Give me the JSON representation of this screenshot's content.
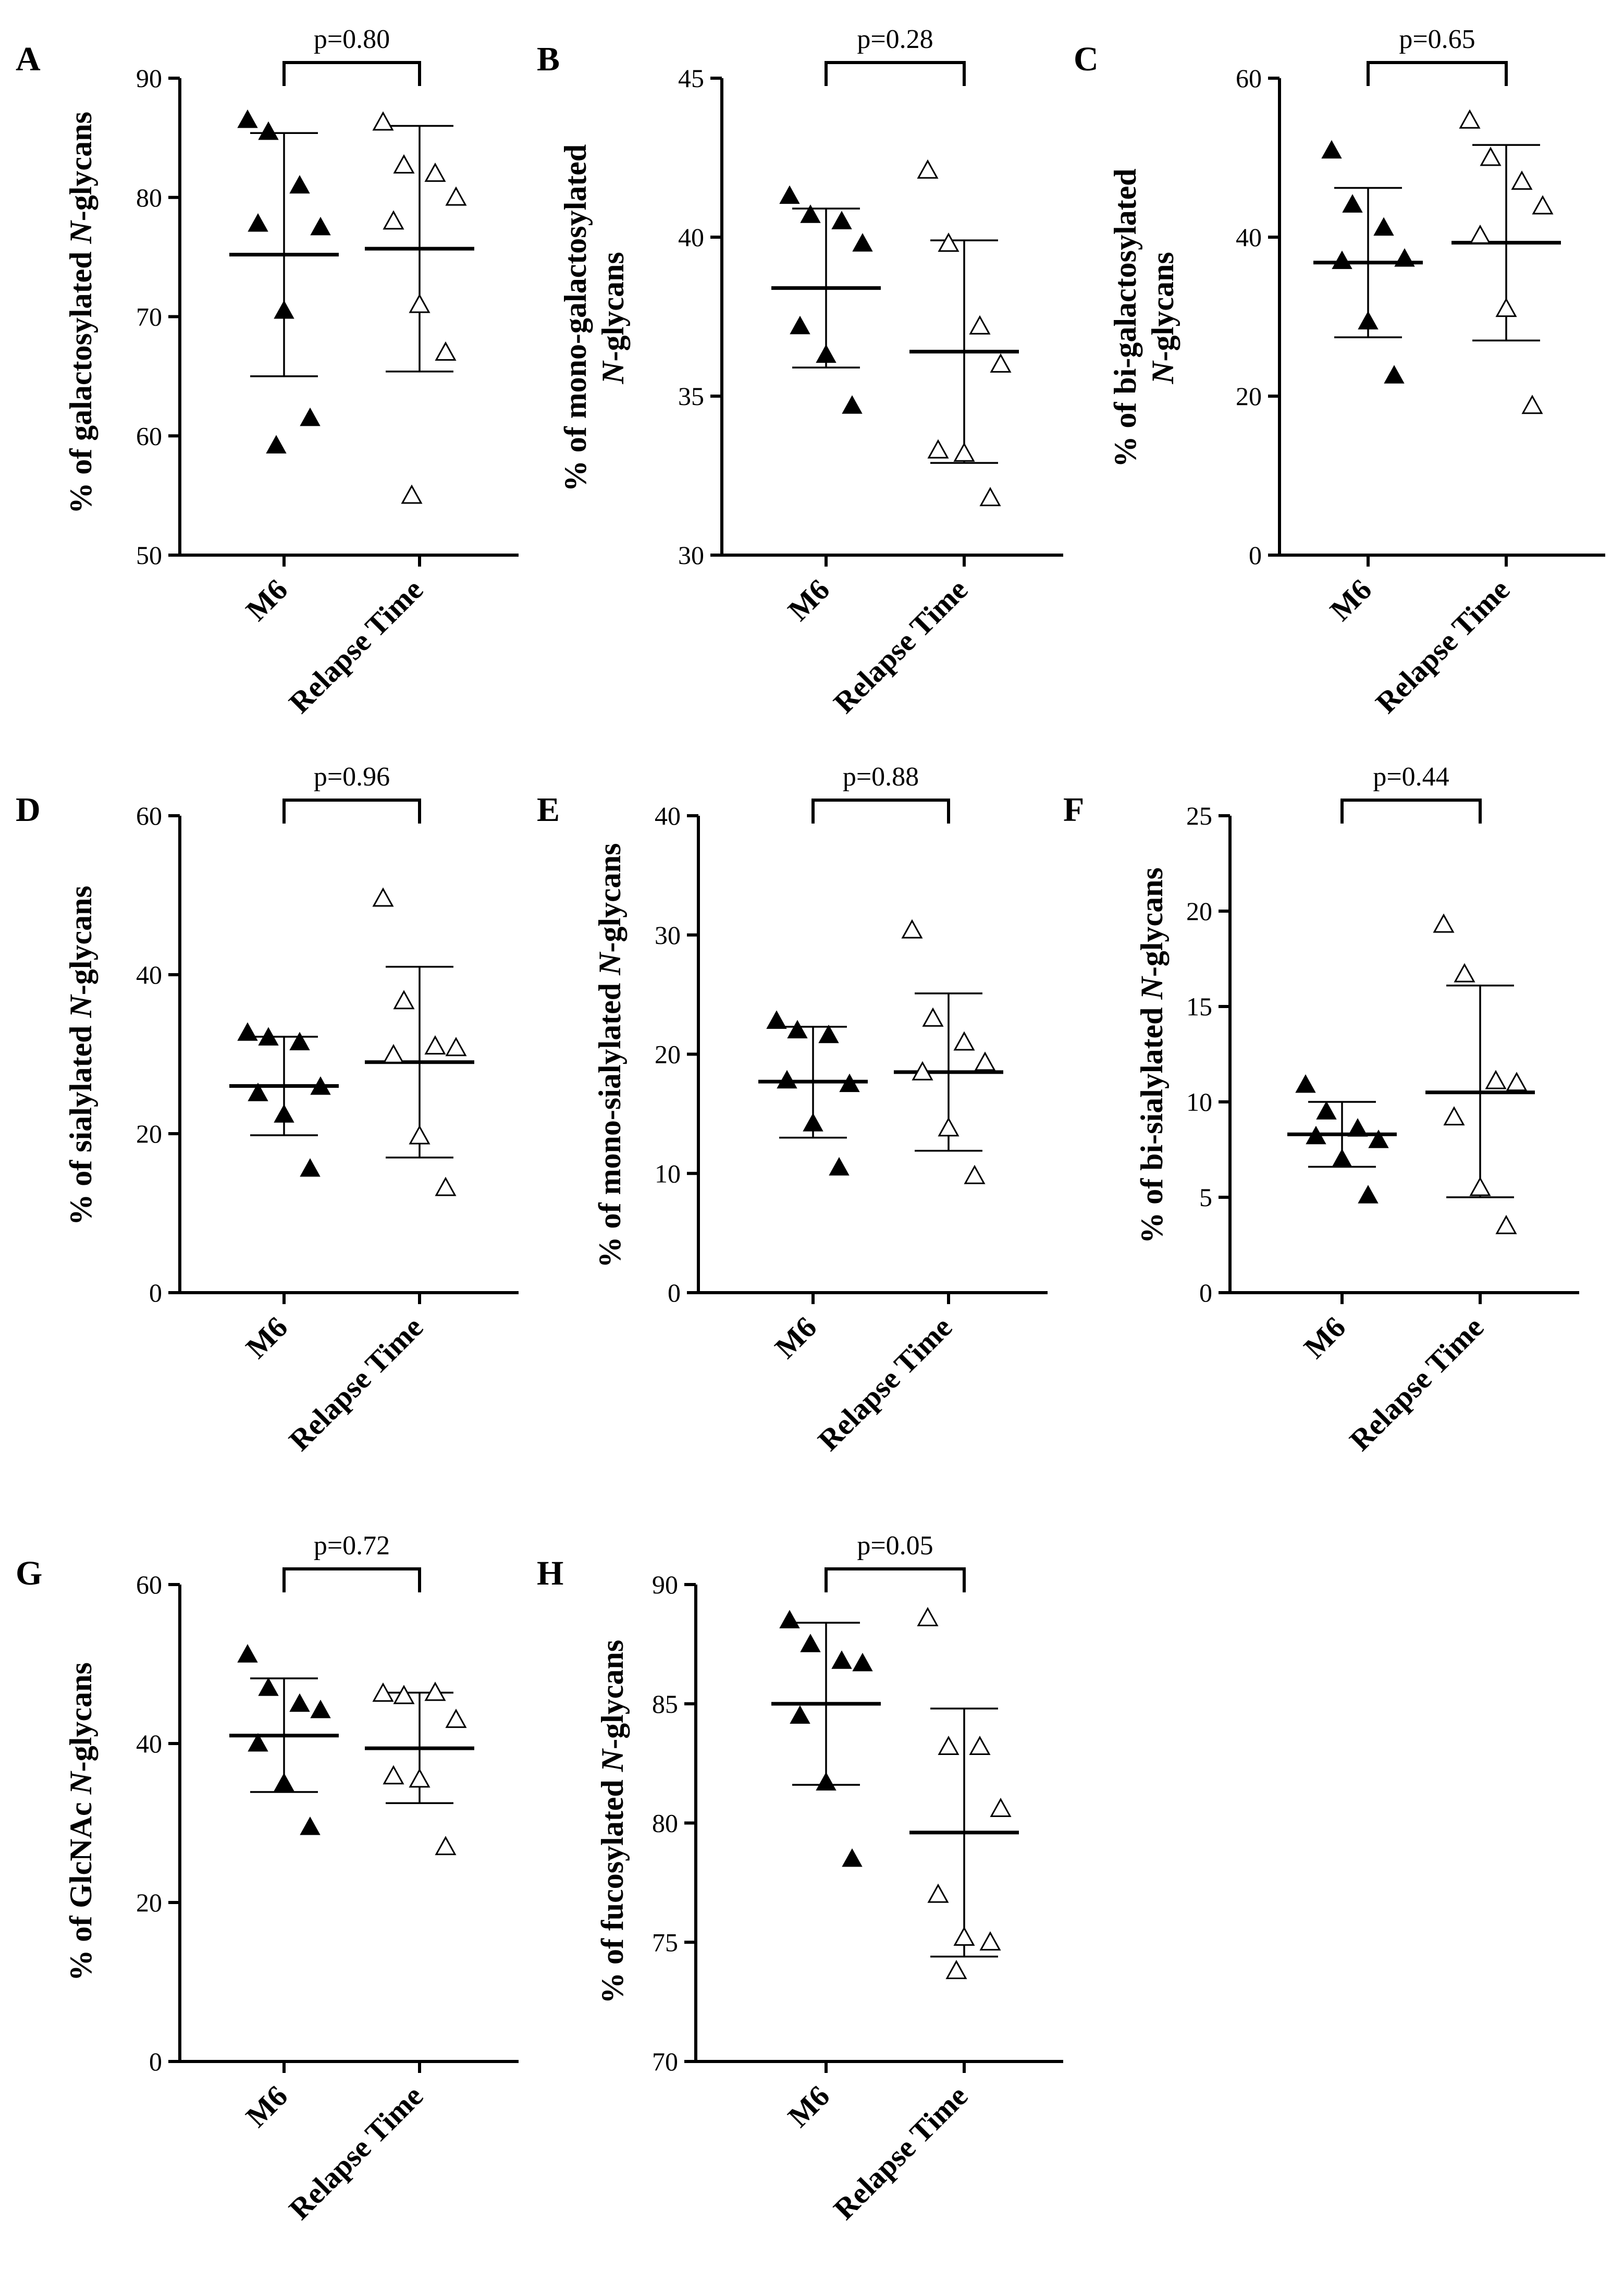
{
  "chart_data": [
    {
      "panel": "A",
      "type": "scatter",
      "ylabel_lines": [
        {
          "t": "% of galactosylated "
        },
        {
          "t": "N",
          "i": true
        },
        {
          "t": "-glycans"
        }
      ],
      "categories": [
        "M6",
        "Relapse Time"
      ],
      "ylim": [
        50,
        90
      ],
      "ticks": [
        50,
        60,
        70,
        80,
        90
      ],
      "p": "p=0.80",
      "series": [
        {
          "name": "M6",
          "marker": "filled-triangle",
          "mean": 75.2,
          "sd_low": 65.0,
          "sd_high": 85.4,
          "values": [
            86.5,
            85.5,
            81.0,
            77.5,
            77.8,
            70.5,
            61.5,
            59.2
          ]
        },
        {
          "name": "Relapse Time",
          "marker": "open-triangle",
          "mean": 75.7,
          "sd_low": 65.4,
          "sd_high": 86.0,
          "values": [
            86.3,
            82.7,
            82.0,
            80.0,
            78.0,
            71.0,
            67.0,
            55.0
          ]
        }
      ]
    },
    {
      "panel": "B",
      "type": "scatter",
      "ylabel_lines": [
        {
          "t": "% of mono-galactosylated"
        },
        {
          "t": "N",
          "i": true,
          "br": true
        },
        {
          "t": "-glycans"
        }
      ],
      "categories": [
        "M6",
        "Relapse Time"
      ],
      "ylim": [
        30,
        45
      ],
      "ticks": [
        30,
        35,
        40,
        45
      ],
      "p": "p=0.28",
      "series": [
        {
          "name": "M6",
          "marker": "filled-triangle",
          "mean": 38.4,
          "sd_low": 35.9,
          "sd_high": 40.9,
          "values": [
            41.3,
            40.7,
            40.5,
            39.8,
            37.2,
            36.3,
            34.7
          ]
        },
        {
          "name": "Relapse Time",
          "marker": "open-triangle",
          "mean": 36.4,
          "sd_low": 32.9,
          "sd_high": 39.9,
          "values": [
            42.1,
            39.8,
            37.2,
            36.0,
            33.3,
            33.2,
            31.8
          ]
        }
      ]
    },
    {
      "panel": "C",
      "type": "scatter",
      "ylabel_lines": [
        {
          "t": "% of bi-galactosylated"
        },
        {
          "t": "N",
          "i": true,
          "br": true
        },
        {
          "t": "-glycans"
        }
      ],
      "categories": [
        "M6",
        "Relapse Time"
      ],
      "ylim": [
        0,
        60
      ],
      "ticks": [
        0,
        20,
        40,
        60
      ],
      "p": "p=0.65",
      "series": [
        {
          "name": "M6",
          "marker": "filled-triangle",
          "mean": 36.8,
          "sd_low": 27.4,
          "sd_high": 46.2,
          "values": [
            50.9,
            44.1,
            41.2,
            37.3,
            37.0,
            29.4,
            22.6
          ]
        },
        {
          "name": "Relapse Time",
          "marker": "open-triangle",
          "mean": 39.3,
          "sd_low": 27.0,
          "sd_high": 51.6,
          "values": [
            54.7,
            50.0,
            47.0,
            43.9,
            40.2,
            31.0,
            18.8
          ]
        }
      ]
    },
    {
      "panel": "D",
      "type": "scatter",
      "ylabel_lines": [
        {
          "t": "% of sialylated "
        },
        {
          "t": "N",
          "i": true
        },
        {
          "t": "-glycans"
        }
      ],
      "categories": [
        "M6",
        "Relapse Time"
      ],
      "ylim": [
        0,
        60
      ],
      "ticks": [
        0,
        20,
        40,
        60
      ],
      "p": "p=0.96",
      "series": [
        {
          "name": "M6",
          "marker": "filled-triangle",
          "mean": 26.0,
          "sd_low": 19.8,
          "sd_high": 32.2,
          "values": [
            32.7,
            32.1,
            31.5,
            25.9,
            25.1,
            22.4,
            15.6
          ]
        },
        {
          "name": "Relapse Time",
          "marker": "open-triangle",
          "mean": 29.0,
          "sd_low": 17.0,
          "sd_high": 41.0,
          "values": [
            49.6,
            36.7,
            31.0,
            30.8,
            29.9,
            19.7,
            13.2
          ]
        }
      ]
    },
    {
      "panel": "E",
      "type": "scatter",
      "ylabel_lines": [
        {
          "t": "% of mono-sialylated "
        },
        {
          "t": "N",
          "i": true
        },
        {
          "t": "-glycans"
        }
      ],
      "categories": [
        "M6",
        "Relapse Time"
      ],
      "ylim": [
        0,
        40
      ],
      "ticks": [
        0,
        10,
        20,
        30,
        40
      ],
      "p": "p=0.88",
      "series": [
        {
          "name": "M6",
          "marker": "filled-triangle",
          "mean": 17.7,
          "sd_low": 13.0,
          "sd_high": 22.3,
          "values": [
            22.8,
            22.0,
            21.6,
            17.5,
            17.8,
            14.2,
            10.5
          ]
        },
        {
          "name": "Relapse Time",
          "marker": "open-triangle",
          "mean": 18.5,
          "sd_low": 11.9,
          "sd_high": 25.1,
          "values": [
            30.4,
            23.0,
            21.0,
            19.3,
            18.5,
            13.8,
            9.8
          ]
        }
      ]
    },
    {
      "panel": "F",
      "type": "scatter",
      "ylabel_lines": [
        {
          "t": "% of bi-sialylated "
        },
        {
          "t": "N",
          "i": true
        },
        {
          "t": "-glycans"
        }
      ],
      "categories": [
        "M6",
        "Relapse Time"
      ],
      "ylim": [
        0,
        25
      ],
      "ticks": [
        0,
        5,
        10,
        15,
        20,
        25
      ],
      "p": "p=0.44",
      "series": [
        {
          "name": "M6",
          "marker": "filled-triangle",
          "mean": 8.3,
          "sd_low": 6.6,
          "sd_high": 10.0,
          "values": [
            10.9,
            9.5,
            8.6,
            8.0,
            8.2,
            7.0,
            5.1
          ]
        },
        {
          "name": "Relapse Time",
          "marker": "open-triangle",
          "mean": 10.5,
          "sd_low": 5.0,
          "sd_high": 16.1,
          "values": [
            19.3,
            16.7,
            11.1,
            11.0,
            9.2,
            5.5,
            3.5
          ]
        }
      ]
    },
    {
      "panel": "G",
      "type": "scatter",
      "ylabel_lines": [
        {
          "t": "% of GlcNAc "
        },
        {
          "t": "N",
          "i": true
        },
        {
          "t": "-glycans"
        }
      ],
      "categories": [
        "M6",
        "Relapse Time"
      ],
      "ylim": [
        0,
        60
      ],
      "ticks": [
        0,
        20,
        40,
        60
      ],
      "p": "p=0.72",
      "series": [
        {
          "name": "M6",
          "marker": "filled-triangle",
          "mean": 41.0,
          "sd_low": 33.9,
          "sd_high": 48.2,
          "values": [
            51.2,
            47.0,
            45.0,
            44.2,
            40.0,
            35.0,
            29.5
          ]
        },
        {
          "name": "Relapse Time",
          "marker": "open-triangle",
          "mean": 39.4,
          "sd_low": 32.5,
          "sd_high": 46.4,
          "values": [
            46.3,
            46.0,
            46.4,
            43.0,
            35.9,
            35.5,
            27.0
          ]
        }
      ]
    },
    {
      "panel": "H",
      "type": "scatter",
      "ylabel_lines": [
        {
          "t": "% of fucosylated "
        },
        {
          "t": "N",
          "i": true
        },
        {
          "t": "-glycans"
        }
      ],
      "categories": [
        "M6",
        "Relapse Time"
      ],
      "ylim": [
        70,
        90
      ],
      "ticks": [
        70,
        75,
        80,
        85,
        90
      ],
      "p": "p=0.05",
      "series": [
        {
          "name": "M6",
          "marker": "filled-triangle",
          "mean": 85.0,
          "sd_low": 81.6,
          "sd_high": 88.4,
          "values": [
            88.5,
            87.5,
            86.8,
            86.7,
            84.5,
            81.7,
            78.5
          ]
        },
        {
          "name": "Relapse Time",
          "marker": "open-triangle",
          "mean": 79.6,
          "sd_low": 74.4,
          "sd_high": 84.8,
          "values": [
            88.6,
            83.2,
            83.2,
            80.6,
            77.0,
            75.2,
            75.0,
            73.8
          ]
        }
      ]
    }
  ]
}
